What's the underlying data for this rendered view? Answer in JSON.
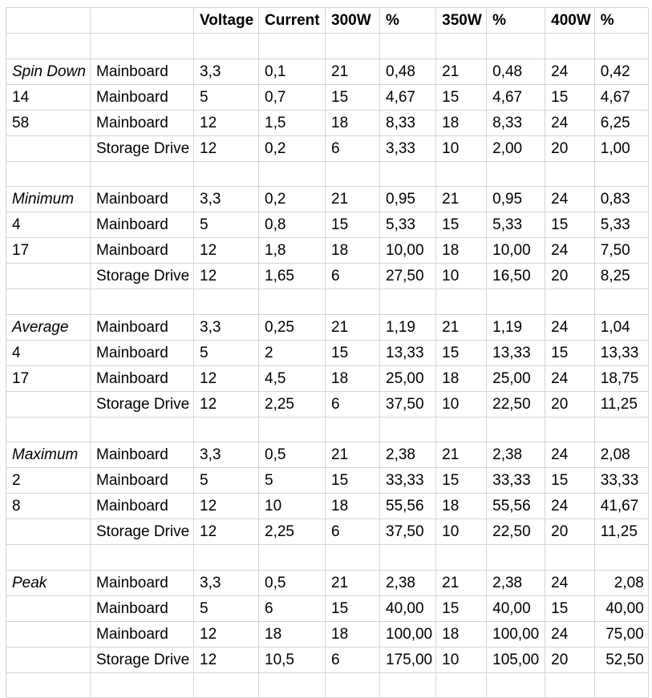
{
  "page": {
    "background_color": "#ffffff",
    "grid_color": "#d4d4d4",
    "text_color": "#000000"
  },
  "table": {
    "column_headers": [
      "",
      "",
      "Voltage",
      "Current",
      "300W",
      "%",
      "350W",
      "%",
      "400W",
      "%"
    ],
    "section_names": [
      "Spin Down",
      "Minimum",
      "Average",
      "Maximum",
      "Peak"
    ],
    "rows": [
      {
        "type": "header",
        "cells": [
          "",
          "",
          "Voltage",
          "Current",
          "300W",
          "%",
          "350W",
          "%",
          "400W",
          "%"
        ]
      },
      {
        "type": "empty",
        "cells": [
          "",
          "",
          "",
          "",
          "",
          "",
          "",
          "",
          "",
          ""
        ]
      },
      {
        "type": "data",
        "italic_label": true,
        "cells": [
          "Spin Down",
          "Mainboard",
          "3,3",
          "0,1",
          "21",
          "0,48",
          "21",
          "0,48",
          "24",
          "0,42"
        ]
      },
      {
        "type": "data",
        "cells": [
          "14",
          "Mainboard",
          "5",
          "0,7",
          "15",
          "4,67",
          "15",
          "4,67",
          "15",
          "4,67"
        ]
      },
      {
        "type": "data",
        "cells": [
          "58",
          "Mainboard",
          "12",
          "1,5",
          "18",
          "8,33",
          "18",
          "8,33",
          "24",
          "6,25"
        ]
      },
      {
        "type": "data",
        "cells": [
          "",
          "Storage Drive",
          "12",
          "0,2",
          "6",
          "3,33",
          "10",
          "2,00",
          "20",
          "1,00"
        ]
      },
      {
        "type": "empty",
        "cells": [
          "",
          "",
          "",
          "",
          "",
          "",
          "",
          "",
          "",
          ""
        ]
      },
      {
        "type": "data",
        "italic_label": true,
        "cells": [
          "Minimum",
          "Mainboard",
          "3,3",
          "0,2",
          "21",
          "0,95",
          "21",
          "0,95",
          "24",
          "0,83"
        ]
      },
      {
        "type": "data",
        "cells": [
          "4",
          "Mainboard",
          "5",
          "0,8",
          "15",
          "5,33",
          "15",
          "5,33",
          "15",
          "5,33"
        ]
      },
      {
        "type": "data",
        "cells": [
          "17",
          "Mainboard",
          "12",
          "1,8",
          "18",
          "10,00",
          "18",
          "10,00",
          "24",
          "7,50"
        ]
      },
      {
        "type": "data",
        "cells": [
          "",
          "Storage Drive",
          "12",
          "1,65",
          "6",
          "27,50",
          "10",
          "16,50",
          "20",
          "8,25"
        ]
      },
      {
        "type": "empty",
        "cells": [
          "",
          "",
          "",
          "",
          "",
          "",
          "",
          "",
          "",
          ""
        ]
      },
      {
        "type": "data",
        "italic_label": true,
        "cells": [
          "Average",
          "Mainboard",
          "3,3",
          "0,25",
          "21",
          "1,19",
          "21",
          "1,19",
          "24",
          "1,04"
        ]
      },
      {
        "type": "data",
        "cells": [
          "4",
          "Mainboard",
          "5",
          "2",
          "15",
          "13,33",
          "15",
          "13,33",
          "15",
          "13,33"
        ]
      },
      {
        "type": "data",
        "cells": [
          "17",
          "Mainboard",
          "12",
          "4,5",
          "18",
          "25,00",
          "18",
          "25,00",
          "24",
          "18,75"
        ]
      },
      {
        "type": "data",
        "cells": [
          "",
          "Storage Drive",
          "12",
          "2,25",
          "6",
          "37,50",
          "10",
          "22,50",
          "20",
          "11,25"
        ]
      },
      {
        "type": "empty",
        "cells": [
          "",
          "",
          "",
          "",
          "",
          "",
          "",
          "",
          "",
          ""
        ]
      },
      {
        "type": "data",
        "italic_label": true,
        "cells": [
          "Maximum",
          "Mainboard",
          "3,3",
          "0,5",
          "21",
          "2,38",
          "21",
          "2,38",
          "24",
          "2,08"
        ]
      },
      {
        "type": "data",
        "cells": [
          "2",
          "Mainboard",
          "5",
          "5",
          "15",
          "33,33",
          "15",
          "33,33",
          "15",
          "33,33"
        ]
      },
      {
        "type": "data",
        "cells": [
          "8",
          "Mainboard",
          "12",
          "10",
          "18",
          "55,56",
          "18",
          "55,56",
          "24",
          "41,67"
        ]
      },
      {
        "type": "data",
        "cells": [
          "",
          "Storage Drive",
          "12",
          "2,25",
          "6",
          "37,50",
          "10",
          "22,50",
          "20",
          "11,25"
        ]
      },
      {
        "type": "empty",
        "cells": [
          "",
          "",
          "",
          "",
          "",
          "",
          "",
          "",
          "",
          ""
        ]
      },
      {
        "type": "data",
        "italic_label": true,
        "align_last_right": true,
        "cells": [
          "Peak",
          "Mainboard",
          "3,3",
          "0,5",
          "21",
          "2,38",
          "21",
          "2,38",
          "24",
          "2,08"
        ]
      },
      {
        "type": "data",
        "align_last_right": true,
        "cells": [
          "",
          "Mainboard",
          "5",
          "6",
          "15",
          "40,00",
          "15",
          "40,00",
          "15",
          "40,00"
        ]
      },
      {
        "type": "data",
        "align_last_right": true,
        "cells": [
          "",
          "Mainboard",
          "12",
          "18",
          "18",
          "100,00",
          "18",
          "100,00",
          "24",
          "75,00"
        ]
      },
      {
        "type": "data",
        "align_last_right": true,
        "cells": [
          "",
          "Storage Drive",
          "12",
          "10,5",
          "6",
          "175,00",
          "10",
          "105,00",
          "20",
          "52,50"
        ]
      },
      {
        "type": "empty",
        "cells": [
          "",
          "",
          "",
          "",
          "",
          "",
          "",
          "",
          "",
          ""
        ]
      }
    ]
  }
}
